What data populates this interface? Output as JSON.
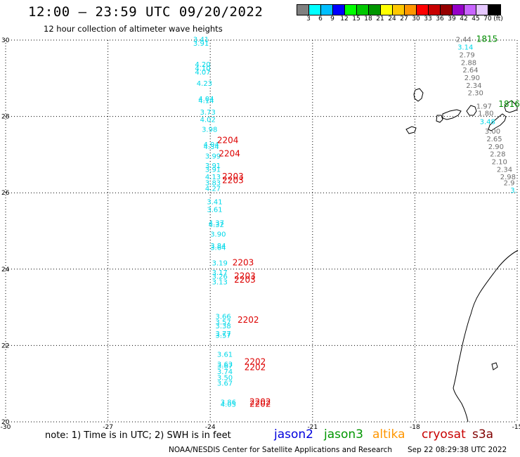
{
  "header": {
    "title": "12:00 – 23:59 UTC 09/20/2022",
    "subtitle": "12 hour collection of altimeter wave heights"
  },
  "legend": {
    "colors": [
      "#808080",
      "#00ffff",
      "#00bfff",
      "#0000ff",
      "#00ff00",
      "#00c800",
      "#009600",
      "#ffff00",
      "#ffc800",
      "#ff9600",
      "#ff0000",
      "#c80000",
      "#960000",
      "#9600c8",
      "#c864ff",
      "#e6c8ff",
      "#000000"
    ],
    "ticks": [
      "3",
      "6",
      "9",
      "12",
      "15",
      "18",
      "21",
      "24",
      "27",
      "30",
      "33",
      "36",
      "39",
      "42",
      "45",
      "70",
      "(ft)"
    ]
  },
  "axes": {
    "lat_labels": [
      "30",
      "28",
      "26",
      "24",
      "22",
      "20"
    ],
    "lon_labels": [
      "-30",
      "-27",
      "-24",
      "-21",
      "-18",
      "-15"
    ]
  },
  "satellites": [
    {
      "name": "jason2",
      "color": "#0000dd"
    },
    {
      "name": "jason3",
      "color": "#009600"
    },
    {
      "name": "altika",
      "color": "#ff9600"
    },
    {
      "name": "cryosat",
      "color": "#c80000"
    },
    {
      "name": "s3a",
      "color": "#800000"
    }
  ],
  "footer": {
    "note": "note: 1) Time is in UTC; 2) SWH is in feet",
    "credit": "NOAA/NESDIS Center for Satellite Applications and Research",
    "generated": "Sep 22 08:29:38 UTC 2022"
  },
  "map_data": {
    "lat_range": [
      20,
      30
    ],
    "lon_range": [
      -30,
      -15
    ],
    "wave_color_cyan": "#00d8e8",
    "wave_color_gray": "#6e6e6e",
    "cyan_track": [
      {
        "lat": 29.95,
        "lon": -24.5,
        "v": "3.41"
      },
      {
        "lat": 29.85,
        "lon": -24.5,
        "v": "3.91"
      },
      {
        "lat": 29.3,
        "lon": -24.45,
        "v": "4.20"
      },
      {
        "lat": 29.2,
        "lon": -24.45,
        "v": "4.10"
      },
      {
        "lat": 29.1,
        "lon": -24.45,
        "v": "4.07"
      },
      {
        "lat": 28.8,
        "lon": -24.4,
        "v": "4.23"
      },
      {
        "lat": 28.4,
        "lon": -24.35,
        "v": "4.04"
      },
      {
        "lat": 28.35,
        "lon": -24.35,
        "v": "4.14"
      },
      {
        "lat": 28.05,
        "lon": -24.3,
        "v": "3.73"
      },
      {
        "lat": 27.85,
        "lon": -24.3,
        "v": "4.02"
      },
      {
        "lat": 27.6,
        "lon": -24.25,
        "v": "3.98"
      },
      {
        "lat": 27.2,
        "lon": -24.2,
        "v": "4.04"
      },
      {
        "lat": 27.15,
        "lon": -24.2,
        "v": "4.34"
      },
      {
        "lat": 26.9,
        "lon": -24.15,
        "v": "3.99"
      },
      {
        "lat": 26.65,
        "lon": -24.15,
        "v": "3.91"
      },
      {
        "lat": 26.55,
        "lon": -24.15,
        "v": "3.91"
      },
      {
        "lat": 26.35,
        "lon": -24.15,
        "v": "4.13"
      },
      {
        "lat": 26.2,
        "lon": -24.15,
        "v": "3.83"
      },
      {
        "lat": 26.05,
        "lon": -24.15,
        "v": "4.27"
      },
      {
        "lat": 25.7,
        "lon": -24.1,
        "v": "3.41"
      },
      {
        "lat": 25.5,
        "lon": -24.1,
        "v": "3.61"
      },
      {
        "lat": 25.15,
        "lon": -24.05,
        "v": "4.37"
      },
      {
        "lat": 25.1,
        "lon": -24.05,
        "v": "4.32"
      },
      {
        "lat": 24.85,
        "lon": -24.0,
        "v": "3.90"
      },
      {
        "lat": 24.55,
        "lon": -24.0,
        "v": "3.84"
      },
      {
        "lat": 24.5,
        "lon": -24.0,
        "v": "3.64"
      },
      {
        "lat": 24.1,
        "lon": -23.95,
        "v": "3.19"
      },
      {
        "lat": 23.85,
        "lon": -23.95,
        "v": "3.17"
      },
      {
        "lat": 23.75,
        "lon": -23.95,
        "v": "3.26"
      },
      {
        "lat": 23.6,
        "lon": -23.95,
        "v": "3.13"
      },
      {
        "lat": 22.7,
        "lon": -23.85,
        "v": "3.66"
      },
      {
        "lat": 22.55,
        "lon": -23.85,
        "v": "3.57"
      },
      {
        "lat": 22.45,
        "lon": -23.85,
        "v": "3.38"
      },
      {
        "lat": 22.25,
        "lon": -23.85,
        "v": "3.77"
      },
      {
        "lat": 22.2,
        "lon": -23.85,
        "v": "3.57"
      },
      {
        "lat": 21.7,
        "lon": -23.8,
        "v": "3.61"
      },
      {
        "lat": 21.45,
        "lon": -23.8,
        "v": "3.63"
      },
      {
        "lat": 21.4,
        "lon": -23.8,
        "v": "3.67"
      },
      {
        "lat": 21.25,
        "lon": -23.8,
        "v": "3.74"
      },
      {
        "lat": 21.1,
        "lon": -23.8,
        "v": "3.50"
      },
      {
        "lat": 20.95,
        "lon": -23.8,
        "v": "3.67"
      },
      {
        "lat": 20.45,
        "lon": -23.7,
        "v": "3.86"
      },
      {
        "lat": 20.4,
        "lon": -23.7,
        "v": "4.05"
      }
    ],
    "east_track": [
      {
        "lat": 29.95,
        "lon": -16.8,
        "v": "2.44",
        "c": "gray"
      },
      {
        "lat": 29.75,
        "lon": -16.75,
        "v": "3.14",
        "c": "cyan"
      },
      {
        "lat": 29.55,
        "lon": -16.7,
        "v": "2.79",
        "c": "gray"
      },
      {
        "lat": 29.35,
        "lon": -16.65,
        "v": "2.88",
        "c": "gray"
      },
      {
        "lat": 29.15,
        "lon": -16.6,
        "v": "2.64",
        "c": "gray"
      },
      {
        "lat": 28.95,
        "lon": -16.55,
        "v": "2.90",
        "c": "gray"
      },
      {
        "lat": 28.75,
        "lon": -16.5,
        "v": "2.34",
        "c": "gray"
      },
      {
        "lat": 28.55,
        "lon": -16.45,
        "v": "2.30",
        "c": "gray"
      },
      {
        "lat": 28.2,
        "lon": -16.2,
        "v": "1.97",
        "c": "gray"
      },
      {
        "lat": 28.02,
        "lon": -16.15,
        "v": "1.80",
        "c": "gray"
      },
      {
        "lat": 27.8,
        "lon": -16.1,
        "v": "3.48",
        "c": "cyan"
      },
      {
        "lat": 27.55,
        "lon": -15.95,
        "v": "3.00",
        "c": "gray"
      },
      {
        "lat": 27.35,
        "lon": -15.9,
        "v": "2.65",
        "c": "gray"
      },
      {
        "lat": 27.15,
        "lon": -15.85,
        "v": "2.90",
        "c": "gray"
      },
      {
        "lat": 26.95,
        "lon": -15.8,
        "v": "2.28",
        "c": "gray"
      },
      {
        "lat": 26.75,
        "lon": -15.75,
        "v": "2.10",
        "c": "gray"
      },
      {
        "lat": 26.55,
        "lon": -15.6,
        "v": "2.34",
        "c": "gray"
      },
      {
        "lat": 26.35,
        "lon": -15.5,
        "v": "2.98",
        "c": "gray"
      },
      {
        "lat": 26.2,
        "lon": -15.4,
        "v": "2.9",
        "c": "gray"
      },
      {
        "lat": 26.0,
        "lon": -15.2,
        "v": "3.",
        "c": "cyan"
      }
    ],
    "pass_times": [
      {
        "lat": 27.3,
        "lon": -23.8,
        "t": "2204",
        "color": "#dd0000"
      },
      {
        "lat": 26.95,
        "lon": -23.75,
        "t": "2204",
        "color": "#dd0000"
      },
      {
        "lat": 26.35,
        "lon": -23.65,
        "t": "2203",
        "color": "#dd0000"
      },
      {
        "lat": 26.25,
        "lon": -23.65,
        "t": "2203",
        "color": "#dd0000"
      },
      {
        "lat": 24.1,
        "lon": -23.35,
        "t": "2203",
        "color": "#dd0000"
      },
      {
        "lat": 23.75,
        "lon": -23.3,
        "t": "2203",
        "color": "#dd0000"
      },
      {
        "lat": 23.65,
        "lon": -23.3,
        "t": "2203",
        "color": "#dd0000"
      },
      {
        "lat": 22.6,
        "lon": -23.2,
        "t": "2202",
        "color": "#dd0000"
      },
      {
        "lat": 21.5,
        "lon": -23.0,
        "t": "2202",
        "color": "#dd0000"
      },
      {
        "lat": 21.35,
        "lon": -23.0,
        "t": "2202",
        "color": "#dd0000"
      },
      {
        "lat": 20.45,
        "lon": -22.85,
        "t": "2202",
        "color": "#dd0000"
      },
      {
        "lat": 20.4,
        "lon": -22.85,
        "t": "2202",
        "color": "#dd0000"
      },
      {
        "lat": 29.95,
        "lon": -16.2,
        "t": "1815",
        "color": "#008c00"
      },
      {
        "lat": 28.25,
        "lon": -15.55,
        "t": "1816",
        "color": "#008c00"
      }
    ]
  }
}
